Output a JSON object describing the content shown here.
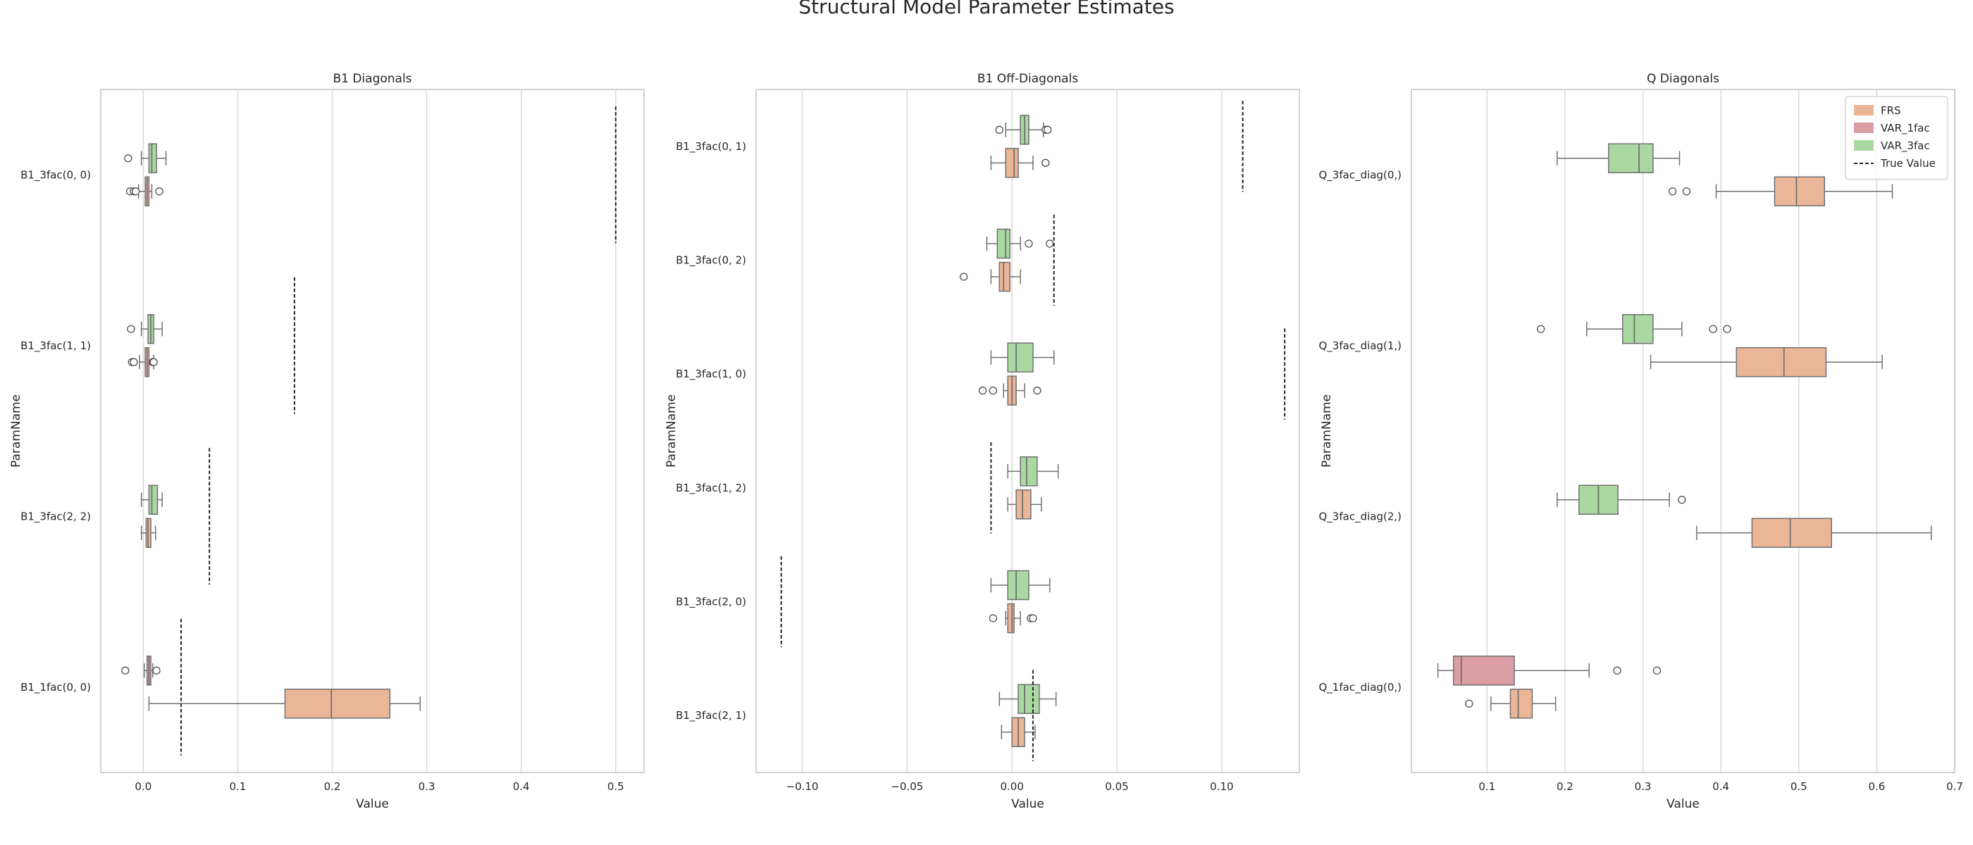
{
  "figure": {
    "title": "Structural Model Parameter Estimates"
  },
  "colors": {
    "FRS": "#ebb697",
    "VAR_1fac": "#db9ea4",
    "VAR_3fac": "#a9d9a1",
    "grid": "#d9d9d9",
    "frame": "#cccccc",
    "line": "#707070"
  },
  "legend": {
    "location": "top-right",
    "entries": [
      "FRS",
      "VAR_1fac",
      "VAR_3fac",
      "True Value"
    ]
  },
  "chart_data": [
    {
      "type": "box",
      "title": "B1 Diagonals",
      "xlabel": "Value",
      "ylabel": "ParamName",
      "xlim": [
        -0.045,
        0.53
      ],
      "xticks": [
        0,
        0.1,
        0.2,
        0.3,
        0.4,
        0.5
      ],
      "xtick_labels": [
        "0.0",
        "0.1",
        "0.2",
        "0.3",
        "0.4",
        "0.5"
      ],
      "grid": true,
      "categories": [
        "B1_3fac(0, 0)",
        "B1_3fac(1, 1)",
        "B1_3fac(2, 2)",
        "B1_1fac(0, 0)"
      ],
      "true_values": [
        0.5,
        0.16,
        0.07,
        0.04
      ],
      "series": [
        {
          "name": "VAR_3fac",
          "boxes": [
            {
              "category": "B1_3fac(0, 0)",
              "min": -0.002,
              "q1": 0.006,
              "median": 0.009,
              "q3": 0.014,
              "max": 0.024,
              "outliers": [
                -0.016
              ]
            },
            {
              "category": "B1_3fac(1, 1)",
              "min": -0.002,
              "q1": 0.005,
              "median": 0.008,
              "q3": 0.011,
              "max": 0.02,
              "outliers": [
                -0.013
              ]
            },
            {
              "category": "B1_3fac(2, 2)",
              "min": -0.002,
              "q1": 0.006,
              "median": 0.009,
              "q3": 0.015,
              "max": 0.02,
              "outliers": []
            }
          ]
        },
        {
          "name": "FRS",
          "boxes": [
            {
              "category": "B1_3fac(0, 0)",
              "min": -0.005,
              "q1": 0.002,
              "median": 0.004,
              "q3": 0.006,
              "max": 0.009,
              "outliers": [
                -0.014,
                -0.01,
                -0.008,
                0.017
              ]
            },
            {
              "category": "B1_3fac(1, 1)",
              "min": -0.004,
              "q1": 0.002,
              "median": 0.004,
              "q3": 0.006,
              "max": 0.011,
              "outliers": [
                -0.012,
                -0.01,
                0.01,
                0.011
              ]
            },
            {
              "category": "B1_3fac(2, 2)",
              "min": -0.002,
              "q1": 0.003,
              "median": 0.005,
              "q3": 0.008,
              "max": 0.013,
              "outliers": []
            },
            {
              "category": "B1_1fac(0, 0)",
              "min": 0.006,
              "q1": 0.15,
              "median": 0.199,
              "q3": 0.261,
              "max": 0.293,
              "outliers": []
            }
          ]
        },
        {
          "name": "VAR_1fac",
          "boxes": [
            {
              "category": "B1_1fac(0, 0)",
              "min": 0.001,
              "q1": 0.004,
              "median": 0.006,
              "q3": 0.008,
              "max": 0.01,
              "outliers": [
                -0.019,
                0.014
              ]
            }
          ]
        }
      ]
    },
    {
      "type": "box",
      "title": "B1 Off-Diagonals",
      "xlabel": "Value",
      "ylabel": "ParamName",
      "xlim": [
        -0.122,
        0.137
      ],
      "xticks": [
        -0.1,
        -0.05,
        0,
        0.05,
        0.1
      ],
      "xtick_labels": [
        "−0.10",
        "−0.05",
        "0.00",
        "0.05",
        "0.10"
      ],
      "grid": true,
      "categories": [
        "B1_3fac(0, 1)",
        "B1_3fac(0, 2)",
        "B1_3fac(1, 0)",
        "B1_3fac(1, 2)",
        "B1_3fac(2, 0)",
        "B1_3fac(2, 1)"
      ],
      "true_values": [
        0.11,
        0.02,
        0.13,
        -0.01,
        -0.11,
        0.01
      ],
      "series": [
        {
          "name": "VAR_3fac",
          "boxes": [
            {
              "category": "B1_3fac(0, 1)",
              "min": -0.003,
              "q1": 0.004,
              "median": 0.006,
              "q3": 0.008,
              "max": 0.015,
              "outliers": [
                -0.006,
                0.016,
                0.017
              ]
            },
            {
              "category": "B1_3fac(0, 2)",
              "min": -0.012,
              "q1": -0.007,
              "median": -0.003,
              "q3": -0.001,
              "max": 0.004,
              "outliers": [
                0.008,
                0.018
              ]
            },
            {
              "category": "B1_3fac(1, 0)",
              "min": -0.01,
              "q1": -0.002,
              "median": 0.002,
              "q3": 0.01,
              "max": 0.02,
              "outliers": []
            },
            {
              "category": "B1_3fac(1, 2)",
              "min": -0.002,
              "q1": 0.004,
              "median": 0.007,
              "q3": 0.012,
              "max": 0.022,
              "outliers": []
            },
            {
              "category": "B1_3fac(2, 0)",
              "min": -0.01,
              "q1": -0.002,
              "median": 0.002,
              "q3": 0.008,
              "max": 0.018,
              "outliers": []
            },
            {
              "category": "B1_3fac(2, 1)",
              "min": -0.006,
              "q1": 0.003,
              "median": 0.006,
              "q3": 0.013,
              "max": 0.021,
              "outliers": []
            }
          ]
        },
        {
          "name": "FRS",
          "boxes": [
            {
              "category": "B1_3fac(0, 1)",
              "min": -0.01,
              "q1": -0.003,
              "median": 0.001,
              "q3": 0.003,
              "max": 0.01,
              "outliers": [
                0.016
              ]
            },
            {
              "category": "B1_3fac(0, 2)",
              "min": -0.01,
              "q1": -0.006,
              "median": -0.004,
              "q3": -0.001,
              "max": 0.004,
              "outliers": [
                -0.023
              ]
            },
            {
              "category": "B1_3fac(1, 0)",
              "min": -0.004,
              "q1": -0.002,
              "median": 0.0,
              "q3": 0.002,
              "max": 0.006,
              "outliers": [
                -0.014,
                -0.009,
                0.012
              ]
            },
            {
              "category": "B1_3fac(1, 2)",
              "min": -0.002,
              "q1": 0.002,
              "median": 0.005,
              "q3": 0.009,
              "max": 0.014,
              "outliers": []
            },
            {
              "category": "B1_3fac(2, 0)",
              "min": -0.003,
              "q1": -0.002,
              "median": 0.0,
              "q3": 0.001,
              "max": 0.004,
              "outliers": [
                -0.009,
                0.009,
                0.01
              ]
            },
            {
              "category": "B1_3fac(2, 1)",
              "min": -0.005,
              "q1": 0.0,
              "median": 0.003,
              "q3": 0.006,
              "max": 0.011,
              "outliers": []
            }
          ]
        }
      ]
    },
    {
      "type": "box",
      "title": "Q Diagonals",
      "xlabel": "Value",
      "ylabel": "ParamName",
      "xlim": [
        0.003,
        0.7
      ],
      "xticks": [
        0.1,
        0.2,
        0.3,
        0.4,
        0.5,
        0.6,
        0.7
      ],
      "xtick_labels": [
        "0.1",
        "0.2",
        "0.3",
        "0.4",
        "0.5",
        "0.6",
        "0.7"
      ],
      "grid": true,
      "categories": [
        "Q_3fac_diag(0,)",
        "Q_3fac_diag(1,)",
        "Q_3fac_diag(2,)",
        "Q_1fac_diag(0,)"
      ],
      "true_values": [],
      "series": [
        {
          "name": "VAR_3fac",
          "boxes": [
            {
              "category": "Q_3fac_diag(0,)",
              "min": 0.19,
              "q1": 0.256,
              "median": 0.295,
              "q3": 0.313,
              "max": 0.347,
              "outliers": []
            },
            {
              "category": "Q_3fac_diag(1,)",
              "min": 0.228,
              "q1": 0.274,
              "median": 0.289,
              "q3": 0.313,
              "max": 0.35,
              "outliers": [
                0.169,
                0.39,
                0.408
              ]
            },
            {
              "category": "Q_3fac_diag(2,)",
              "min": 0.19,
              "q1": 0.218,
              "median": 0.243,
              "q3": 0.268,
              "max": 0.334,
              "outliers": [
                0.35
              ]
            }
          ]
        },
        {
          "name": "FRS",
          "boxes": [
            {
              "category": "Q_3fac_diag(0,)",
              "min": 0.394,
              "q1": 0.469,
              "median": 0.497,
              "q3": 0.533,
              "max": 0.62,
              "outliers": [
                0.338,
                0.356
              ]
            },
            {
              "category": "Q_3fac_diag(1,)",
              "min": 0.31,
              "q1": 0.42,
              "median": 0.481,
              "q3": 0.535,
              "max": 0.607,
              "outliers": []
            },
            {
              "category": "Q_3fac_diag(2,)",
              "min": 0.369,
              "q1": 0.44,
              "median": 0.489,
              "q3": 0.542,
              "max": 0.67,
              "outliers": []
            },
            {
              "category": "Q_1fac_diag(0,)",
              "min": 0.105,
              "q1": 0.13,
              "median": 0.14,
              "q3": 0.158,
              "max": 0.188,
              "outliers": [
                0.077
              ]
            }
          ]
        },
        {
          "name": "VAR_1fac",
          "boxes": [
            {
              "category": "Q_1fac_diag(0,)",
              "min": 0.037,
              "q1": 0.057,
              "median": 0.067,
              "q3": 0.135,
              "max": 0.231,
              "outliers": [
                0.267,
                0.318
              ]
            }
          ]
        }
      ]
    }
  ]
}
